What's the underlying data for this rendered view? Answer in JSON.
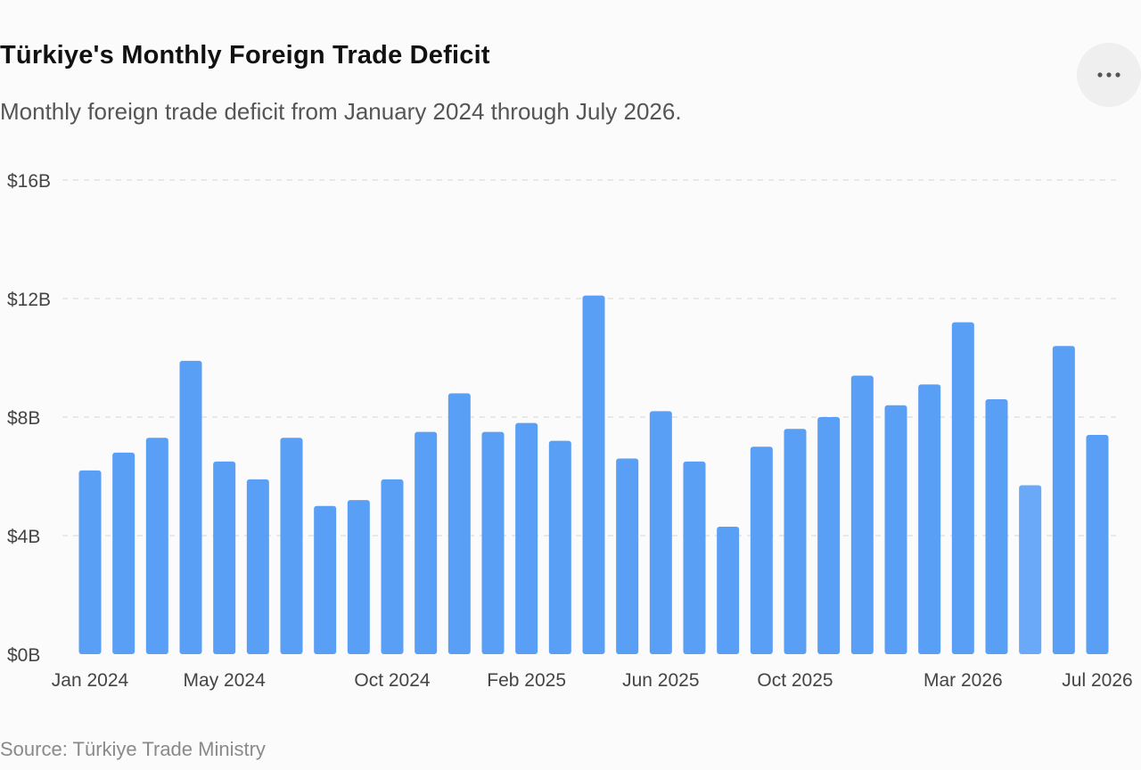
{
  "header": {
    "title": "Türkiye's Monthly Foreign Trade Deficit",
    "subtitle": "Monthly foreign trade deficit from January 2024 through July 2026."
  },
  "menu": {
    "icon": "more-horizontal-icon",
    "label": "More options"
  },
  "footer": {
    "source": "Source: Türkiye Trade Ministry"
  },
  "colors": {
    "bar": "#5a9ff6",
    "bar_highlight": "#6aa9f7",
    "grid": "#dcdcdc",
    "axis_text": "#444444"
  },
  "chart_data": {
    "type": "bar",
    "title": "Türkiye's Monthly Foreign Trade Deficit",
    "xlabel": "",
    "ylabel": "",
    "ylim": [
      0,
      16
    ],
    "yticks": [
      "$0B",
      "$4B",
      "$8B",
      "$12B",
      "$16B"
    ],
    "ytick_values": [
      0,
      4,
      8,
      12,
      16
    ],
    "grid": true,
    "legend": "none",
    "categories": [
      "Jan 2024",
      "Feb 2024",
      "Mar 2024",
      "Apr 2024",
      "May 2024",
      "Jun 2024",
      "Jul 2024",
      "Aug 2024",
      "Sep 2024",
      "Oct 2024",
      "Nov 2024",
      "Dec 2024",
      "Jan 2025",
      "Feb 2025",
      "Mar 2025",
      "Apr 2025",
      "May 2025",
      "Jun 2025",
      "Jul 2025",
      "Aug 2025",
      "Sep 2025",
      "Oct 2025",
      "Nov 2025",
      "Dec 2025",
      "Jan 2026",
      "Feb 2026",
      "Mar 2026",
      "Apr 2026",
      "May 2026",
      "Jun 2026",
      "Jul 2026"
    ],
    "visible_xticks": [
      "Jan 2024",
      "May 2024",
      "Oct 2024",
      "Feb 2025",
      "Jun 2025",
      "Oct 2025",
      "Mar 2026",
      "Jul 2026"
    ],
    "values": [
      6.2,
      6.8,
      7.3,
      9.9,
      6.5,
      5.9,
      7.3,
      5.0,
      5.2,
      5.9,
      7.5,
      8.8,
      7.5,
      7.8,
      7.2,
      12.1,
      6.6,
      8.2,
      6.5,
      4.3,
      7.0,
      7.6,
      8.0,
      9.4,
      8.4,
      9.1,
      11.2,
      8.6,
      5.7,
      10.4,
      7.4
    ],
    "unit": "$B"
  }
}
